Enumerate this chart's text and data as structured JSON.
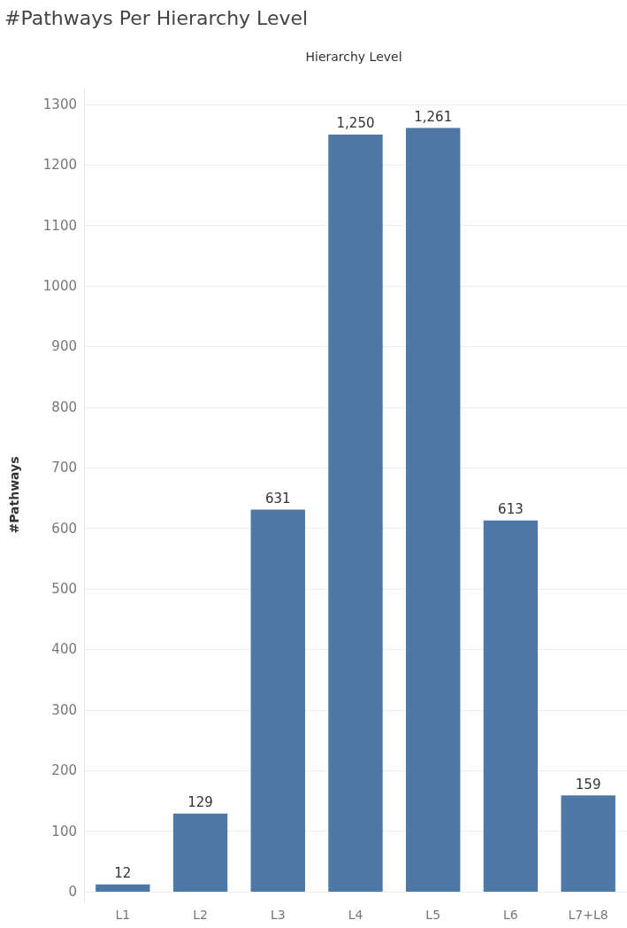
{
  "chart_data": {
    "type": "bar",
    "title": "#Pathways Per Hierarchy Level",
    "xlabel": "Hierarchy Level",
    "ylabel": "#Pathways",
    "categories": [
      "L1",
      "L2",
      "L3",
      "L4",
      "L5",
      "L6",
      "L7+L8"
    ],
    "values": [
      12,
      129,
      631,
      1250,
      1261,
      613,
      159
    ],
    "value_labels": [
      "12",
      "129",
      "631",
      "1,250",
      "1,261",
      "613",
      "159"
    ],
    "color": "#4e79a7",
    "ylim": [
      -16,
      1326
    ],
    "yticks": [
      0,
      100,
      200,
      300,
      400,
      500,
      600,
      700,
      800,
      900,
      1000,
      1100,
      1200,
      1300
    ],
    "grid": "y"
  }
}
